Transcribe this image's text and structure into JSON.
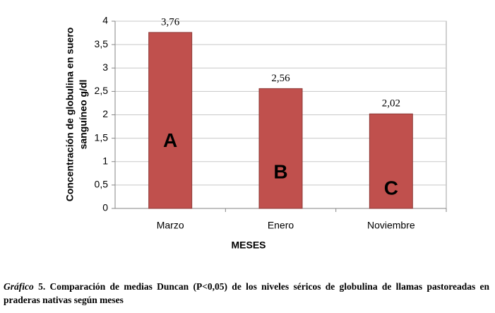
{
  "chart_data": {
    "type": "bar",
    "categories": [
      "Marzo",
      "Enero",
      "Noviembre"
    ],
    "values": [
      3.76,
      2.56,
      2.02
    ],
    "value_labels": [
      "3,76",
      "2,56",
      "2,02"
    ],
    "group_letters": [
      "A",
      "B",
      "C"
    ],
    "color": "#c0504d",
    "ylim": [
      0,
      4
    ],
    "yticks": [
      0,
      {
        "value": 0.5,
        "label": "0,5"
      },
      1,
      {
        "value": 1.5,
        "label": "1,5"
      },
      2,
      {
        "value": 2.5,
        "label": "2,5"
      },
      3,
      {
        "value": 3.5,
        "label": "3,5"
      },
      4
    ],
    "grid": true,
    "ylabel": [
      "Concentración de globulina en suero",
      "sanguíneo g/dl"
    ],
    "xlabel": "MESES",
    "caption_label": "Gráfico",
    "caption_number": "5.",
    "caption_text": "Comparación de medias Duncan (P<0,05) de los niveles séricos de globulina de llamas pastoreadas en praderas nativas según meses"
  }
}
